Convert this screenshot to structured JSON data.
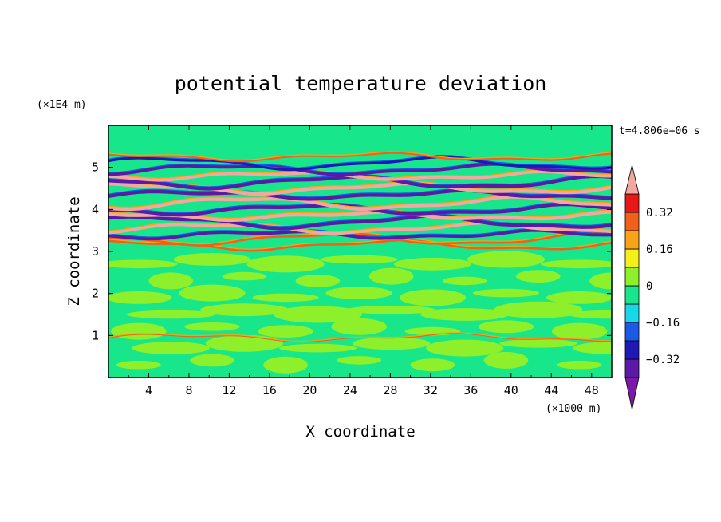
{
  "chart_data": {
    "type": "heatmap",
    "title": "potential temperature deviation",
    "time_label": "t=4.806e+06 s",
    "xlabel": "X coordinate",
    "ylabel": "Z coordinate",
    "x_unit": "(×1000 m)",
    "y_unit": "(×1E4 m)",
    "xlim": [
      0,
      50
    ],
    "ylim": [
      0,
      6
    ],
    "x_ticks": [
      4,
      8,
      12,
      16,
      20,
      24,
      28,
      32,
      36,
      40,
      44,
      48
    ],
    "y_ticks": [
      1,
      2,
      3,
      4,
      5
    ],
    "colorbar": {
      "levels": [
        -0.4,
        -0.32,
        -0.24,
        -0.16,
        -0.08,
        0,
        0.08,
        0.16,
        0.24,
        0.32,
        0.4
      ],
      "labels": [
        "0.32",
        "0.16",
        "0",
        "−0.16",
        "−0.32"
      ],
      "label_values": [
        0.32,
        0.16,
        0,
        -0.16,
        -0.32
      ],
      "under_color": "#7a1aa6",
      "over_color": "#f0a8a0",
      "colors": [
        "#5a1aa6",
        "#2018b4",
        "#1a5ae6",
        "#18d8e8",
        "#18e68a",
        "#8ef02a",
        "#f6f01a",
        "#f8a418",
        "#f06018",
        "#e81818"
      ]
    },
    "bands": [
      {
        "z": 0.95,
        "value": 0.3,
        "thickness": 0.03
      },
      {
        "z": 3.15,
        "value": 0.3,
        "thickness": 0.06
      },
      {
        "z": 3.3,
        "value": 0.3,
        "thickness": 0.06
      },
      {
        "z": 3.4,
        "value": -0.4,
        "thickness": 0.08
      },
      {
        "z": 3.55,
        "value": 0.4,
        "thickness": 0.08
      },
      {
        "z": 3.7,
        "value": -0.4,
        "thickness": 0.09
      },
      {
        "z": 3.85,
        "value": 0.4,
        "thickness": 0.09
      },
      {
        "z": 4.0,
        "value": -0.4,
        "thickness": 0.09
      },
      {
        "z": 4.15,
        "value": 0.4,
        "thickness": 0.09
      },
      {
        "z": 4.35,
        "value": -0.4,
        "thickness": 0.09
      },
      {
        "z": 4.5,
        "value": 0.4,
        "thickness": 0.09
      },
      {
        "z": 4.65,
        "value": -0.4,
        "thickness": 0.09
      },
      {
        "z": 4.8,
        "value": 0.4,
        "thickness": 0.08
      },
      {
        "z": 4.95,
        "value": -0.4,
        "thickness": 0.08
      },
      {
        "z": 5.1,
        "value": -0.3,
        "thickness": 0.07
      },
      {
        "z": 5.25,
        "value": 0.3,
        "thickness": 0.05
      }
    ]
  }
}
